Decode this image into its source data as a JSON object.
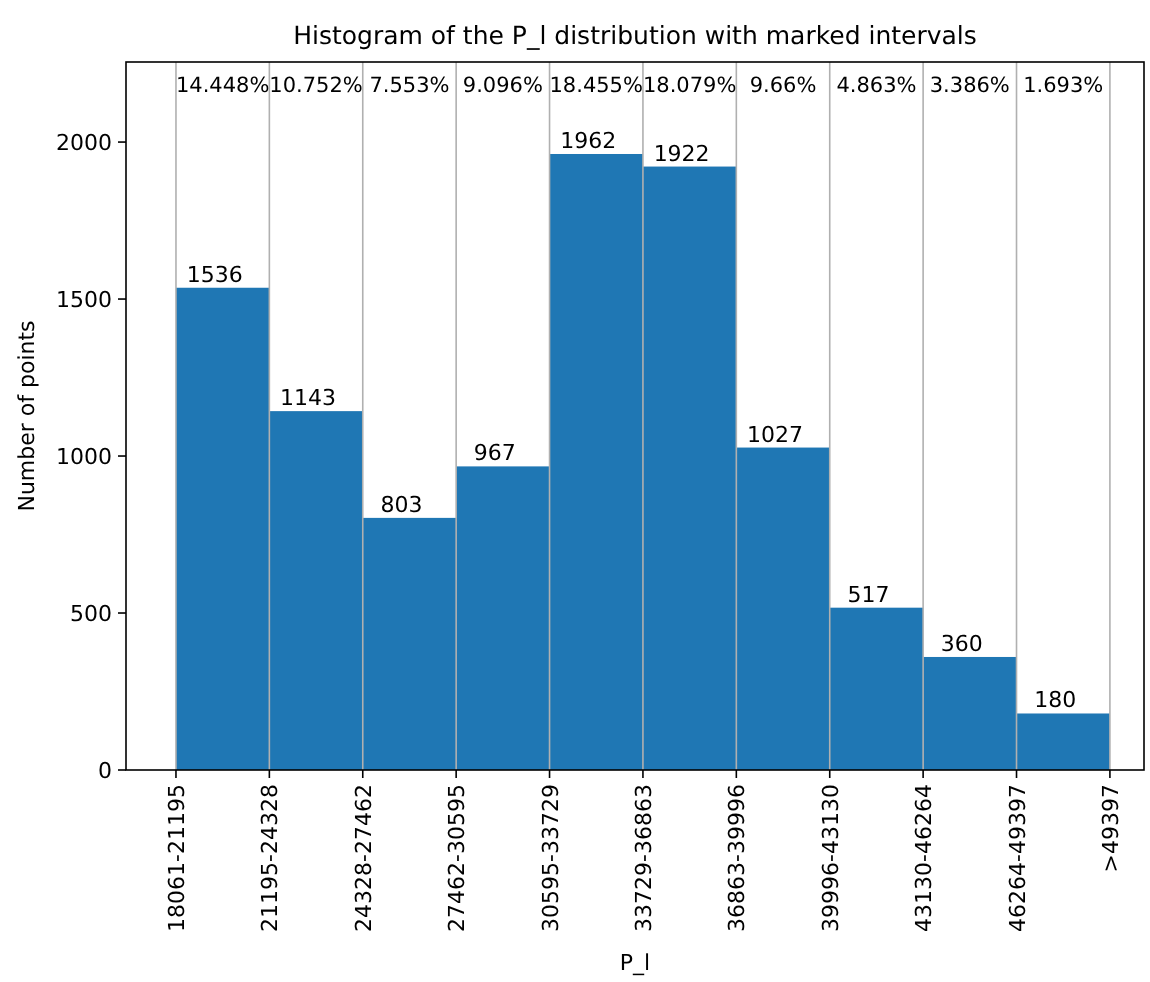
{
  "chart_data": {
    "type": "bar",
    "title": "Histogram of the P_l distribution with marked intervals",
    "xlabel": "P_l",
    "ylabel": "Number of points",
    "categories": [
      "18061-21195",
      "21195-24328",
      "24328-27462",
      "27462-30595",
      "30595-33729",
      "33729-36863",
      "36863-39996",
      "39996-43130",
      "43130-46264",
      "46264-49397",
      ">49397"
    ],
    "values": [
      1536,
      1143,
      803,
      967,
      1962,
      1922,
      1027,
      517,
      360,
      180,
      null
    ],
    "color": "#1f77b4",
    "data_labels": true,
    "grid": "x",
    "ylim": [
      0,
      2255
    ],
    "yticks": [
      0,
      500,
      1000,
      1500,
      2000
    ],
    "annotations": [
      "14.448%",
      "10.752%",
      "7.553%",
      "9.096%",
      "18.455%",
      "18.079%",
      "9.66%",
      "4.863%",
      "3.386%",
      "1.693%"
    ]
  }
}
